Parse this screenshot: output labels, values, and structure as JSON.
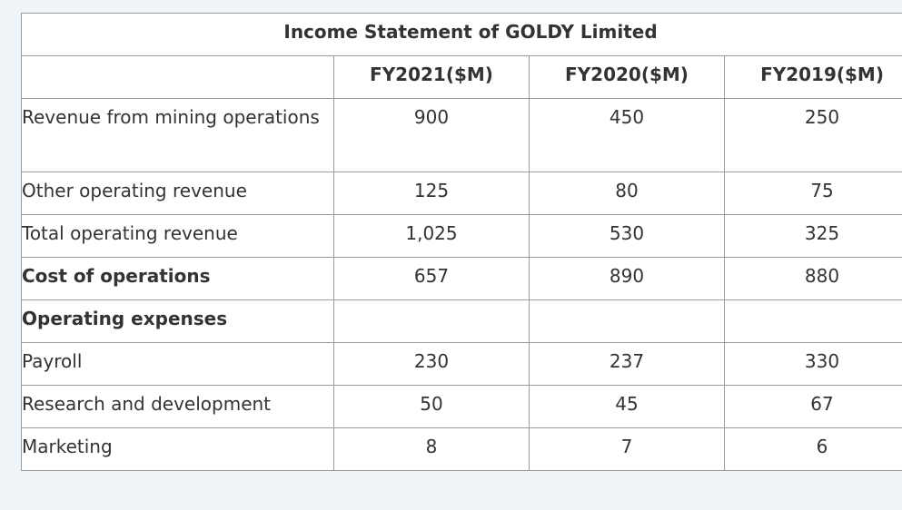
{
  "table": {
    "title": "Income Statement of GOLDY Limited",
    "columns": [
      "FY2021($M)",
      "FY2020($M)",
      "FY2019($M)"
    ],
    "rows": [
      {
        "label": "Revenue from mining operations",
        "values": [
          "900",
          "450",
          "250"
        ]
      },
      {
        "label": "Other operating revenue",
        "values": [
          "125",
          "80",
          "75"
        ]
      },
      {
        "label": "Total operating revenue",
        "values": [
          "1,025",
          "530",
          "325"
        ]
      },
      {
        "label": "Cost of operations",
        "values": [
          "657",
          "890",
          "880"
        ],
        "bold": true
      },
      {
        "label": "Operating expenses",
        "bold": true
      },
      {
        "label": "Payroll",
        "values": [
          "230",
          "237",
          "330"
        ]
      },
      {
        "label": "Research and development",
        "values": [
          "50",
          "45",
          "67"
        ]
      },
      {
        "label": "Marketing",
        "values": [
          "8",
          "7",
          "6"
        ]
      }
    ]
  }
}
